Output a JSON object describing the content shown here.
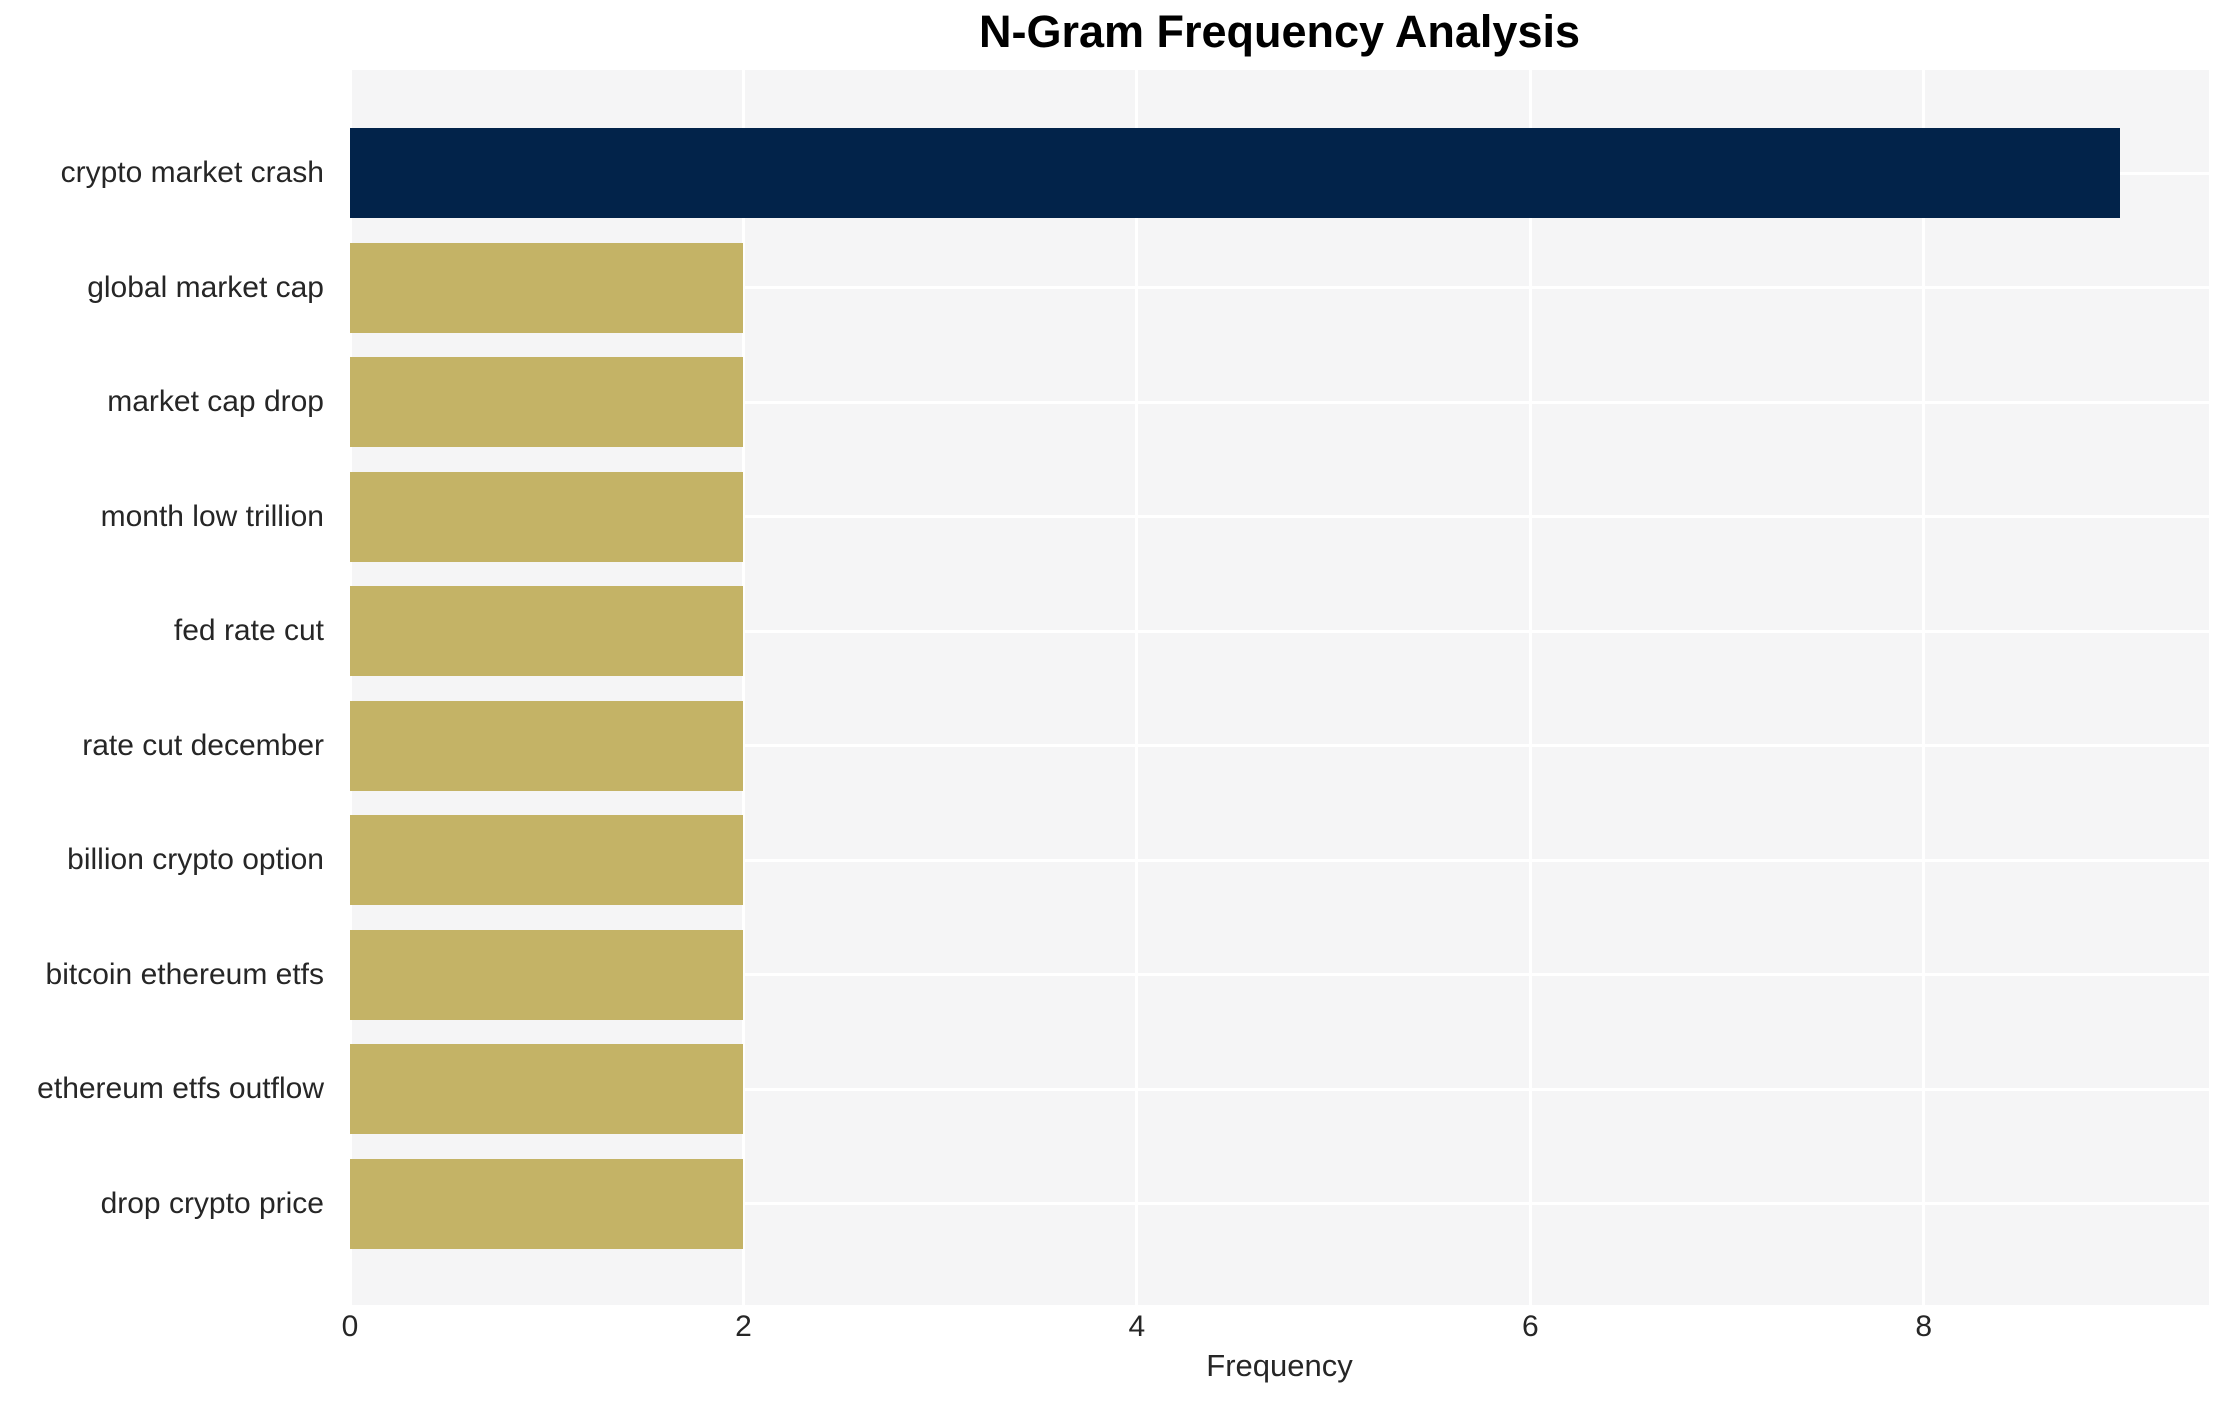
{
  "chart_data": {
    "type": "bar",
    "orientation": "horizontal",
    "title": "N-Gram Frequency Analysis",
    "xlabel": "Frequency",
    "ylabel": "",
    "categories": [
      "crypto market crash",
      "global market cap",
      "market cap drop",
      "month low trillion",
      "fed rate cut",
      "rate cut december",
      "billion crypto option",
      "bitcoin ethereum etfs",
      "ethereum etfs outflow",
      "drop crypto price"
    ],
    "values": [
      9,
      2,
      2,
      2,
      2,
      2,
      2,
      2,
      2,
      2
    ],
    "xticks": [
      0,
      2,
      4,
      6,
      8
    ],
    "xlim": [
      0,
      9.45
    ],
    "grid": true,
    "legend": false,
    "colors": {
      "max_bar": "#02234a",
      "default_bar": "#c4b366",
      "plot_background": "#f5f5f6",
      "grid_line": "#ffffff",
      "tick_text": "#262626",
      "title_text": "#000000"
    }
  }
}
